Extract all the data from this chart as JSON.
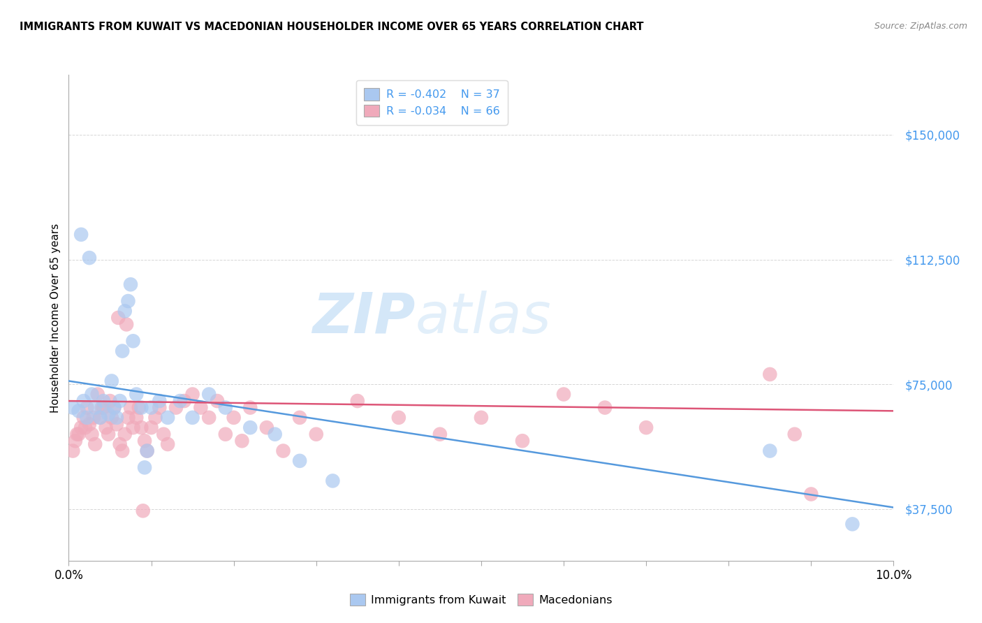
{
  "title": "IMMIGRANTS FROM KUWAIT VS MACEDONIAN HOUSEHOLDER INCOME OVER 65 YEARS CORRELATION CHART",
  "source": "Source: ZipAtlas.com",
  "ylabel": "Householder Income Over 65 years",
  "xlim": [
    0.0,
    10.0
  ],
  "ylim": [
    22000,
    168000
  ],
  "yticks": [
    37500,
    75000,
    112500,
    150000
  ],
  "ytick_labels": [
    "$37,500",
    "$75,000",
    "$112,500",
    "$150,000"
  ],
  "grid_color": "#cccccc",
  "blue_color": "#aac8f0",
  "pink_color": "#f0aabb",
  "blue_line_color": "#5599dd",
  "pink_line_color": "#dd5577",
  "legend_label_blue": "Immigrants from Kuwait",
  "legend_label_pink": "Macedonians",
  "R_blue": "-0.402",
  "N_blue": "37",
  "R_pink": "-0.034",
  "N_pink": "66",
  "watermark_zip": "ZIP",
  "watermark_atlas": "atlas",
  "blue_scatter_x": [
    0.05,
    0.12,
    0.18,
    0.22,
    0.28,
    0.32,
    0.38,
    0.42,
    0.48,
    0.52,
    0.55,
    0.58,
    0.62,
    0.65,
    0.68,
    0.72,
    0.75,
    0.78,
    0.82,
    0.88,
    0.92,
    0.95,
    1.0,
    1.1,
    1.2,
    1.35,
    1.5,
    1.7,
    1.9,
    2.2,
    2.5,
    2.8,
    3.2,
    8.5,
    9.5,
    0.15,
    0.25
  ],
  "blue_scatter_y": [
    68000,
    67000,
    70000,
    65000,
    72000,
    68000,
    65000,
    70000,
    66000,
    76000,
    68000,
    65000,
    70000,
    85000,
    97000,
    100000,
    105000,
    88000,
    72000,
    68000,
    50000,
    55000,
    68000,
    70000,
    65000,
    70000,
    65000,
    72000,
    68000,
    62000,
    60000,
    52000,
    46000,
    55000,
    33000,
    120000,
    113000
  ],
  "pink_scatter_x": [
    0.05,
    0.08,
    0.12,
    0.15,
    0.18,
    0.22,
    0.25,
    0.28,
    0.32,
    0.35,
    0.38,
    0.42,
    0.45,
    0.48,
    0.52,
    0.55,
    0.58,
    0.62,
    0.65,
    0.68,
    0.72,
    0.75,
    0.78,
    0.82,
    0.85,
    0.88,
    0.92,
    0.95,
    1.0,
    1.05,
    1.1,
    1.15,
    1.2,
    1.3,
    1.4,
    1.5,
    1.6,
    1.7,
    1.8,
    1.9,
    2.0,
    2.1,
    2.2,
    2.4,
    2.6,
    2.8,
    3.0,
    3.5,
    4.0,
    4.5,
    5.0,
    5.5,
    6.0,
    6.5,
    7.0,
    8.5,
    8.8,
    9.0,
    0.1,
    0.2,
    0.3,
    0.4,
    0.5,
    0.6,
    0.7,
    0.9
  ],
  "pink_scatter_y": [
    55000,
    58000,
    60000,
    62000,
    65000,
    68000,
    63000,
    60000,
    57000,
    72000,
    65000,
    68000,
    62000,
    60000,
    65000,
    68000,
    63000,
    57000,
    55000,
    60000,
    65000,
    68000,
    62000,
    65000,
    68000,
    62000,
    58000,
    55000,
    62000,
    65000,
    68000,
    60000,
    57000,
    68000,
    70000,
    72000,
    68000,
    65000,
    70000,
    60000,
    65000,
    58000,
    68000,
    62000,
    55000,
    65000,
    60000,
    70000,
    65000,
    60000,
    65000,
    58000,
    72000,
    68000,
    62000,
    78000,
    60000,
    42000,
    60000,
    62000,
    65000,
    68000,
    70000,
    95000,
    93000,
    37000
  ]
}
